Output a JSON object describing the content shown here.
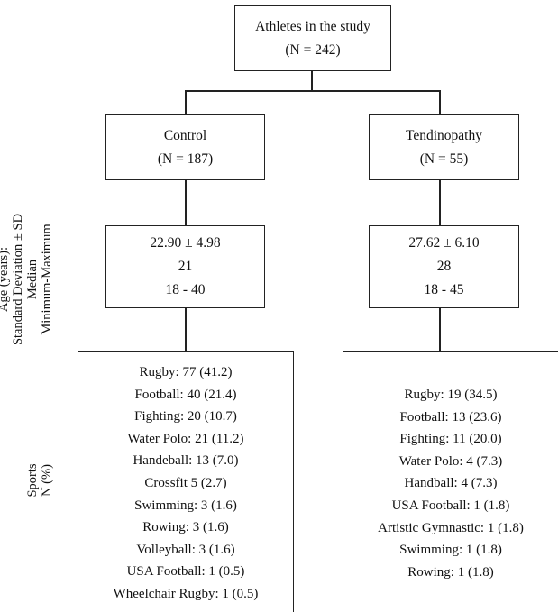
{
  "root": {
    "title": "Athletes in the study",
    "n": "(N = 242)"
  },
  "groups": {
    "control": {
      "name": "Control",
      "n": "(N = 187)",
      "age": {
        "mean_sd": "22.90 ± 4.98",
        "median": "21",
        "range": "18 - 40"
      },
      "sports": [
        "Rugby: 77 (41.2)",
        "Football: 40 (21.4)",
        "Fighting: 20 (10.7)",
        "Water Polo: 21 (11.2)",
        "Handeball: 13 (7.0)",
        "Crossfit 5 (2.7)",
        "Swimming: 3 (1.6)",
        "Rowing: 3 (1.6)",
        "Volleyball: 3 (1.6)",
        "USA Football: 1 (0.5)",
        "Wheelchair Rugby: 1 (0.5)"
      ]
    },
    "tendinopathy": {
      "name": "Tendinopathy",
      "n": "(N = 55)",
      "age": {
        "mean_sd": "27.62 ± 6.10",
        "median": "28",
        "range": "18 - 45"
      },
      "sports": [
        "Rugby: 19 (34.5)",
        "Football: 13 (23.6)",
        "Fighting: 11 (20.0)",
        "Water Polo: 4 (7.3)",
        "Handball: 4 (7.3)",
        "USA Football: 1 (1.8)",
        "Artistic Gymnastic: 1 (1.8)",
        "Swimming: 1 (1.8)",
        "Rowing: 1 (1.8)"
      ]
    }
  },
  "side_labels": {
    "age": [
      "Age (years):",
      "Standard Deviation ± SD",
      "Median",
      "Minimum-Maximum"
    ],
    "sports": [
      "Sports",
      "N (%)"
    ]
  }
}
